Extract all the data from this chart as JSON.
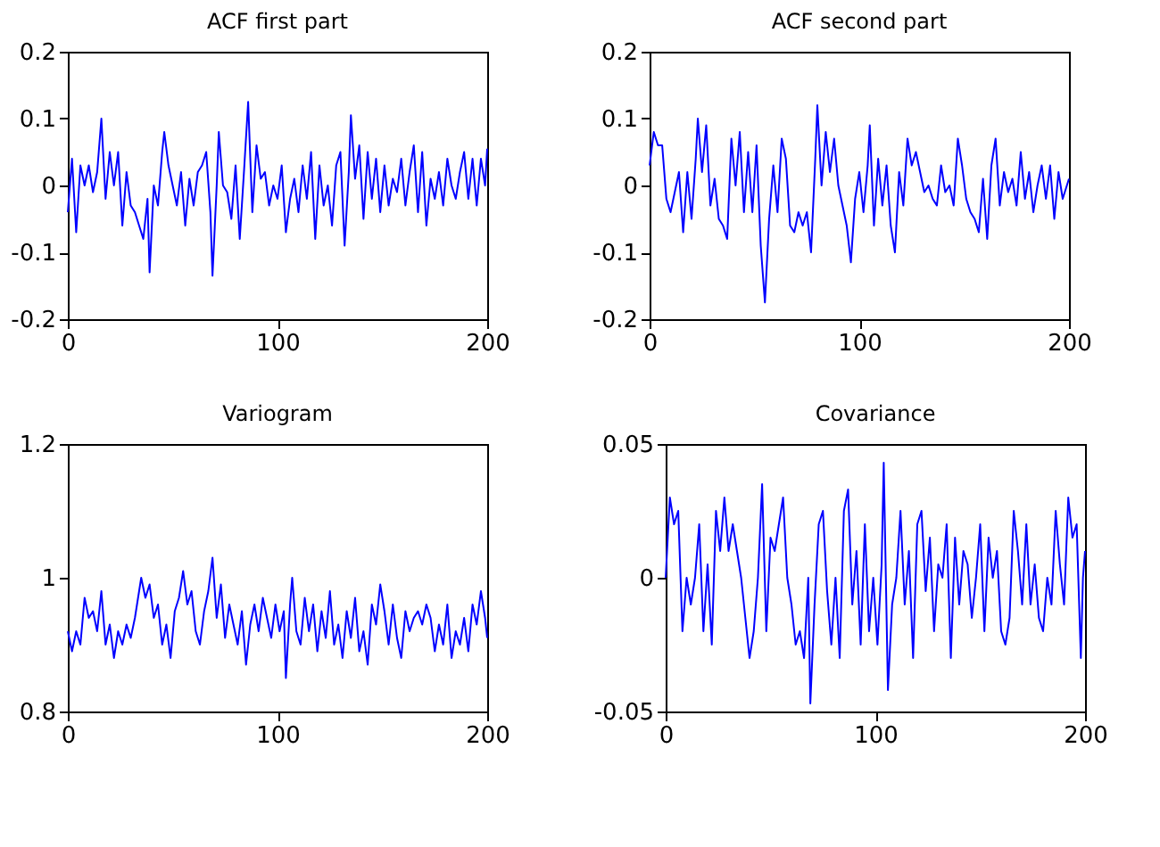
{
  "chart_data": [
    {
      "type": "line",
      "title": "ACF first part",
      "color": "#0000ff",
      "xlim": [
        0,
        200
      ],
      "xticks": [
        0,
        100,
        200
      ],
      "ylim": [
        -0.2,
        0.2
      ],
      "yticks": [
        -0.2,
        -0.1,
        0,
        0.1,
        0.2
      ],
      "x": [
        0,
        2,
        4,
        6,
        8,
        10,
        12,
        14,
        16,
        18,
        20,
        22,
        24,
        26,
        28,
        30,
        32,
        34,
        36,
        38,
        39,
        41,
        43,
        45,
        46,
        48,
        50,
        52,
        54,
        56,
        58,
        60,
        62,
        64,
        66,
        68,
        69,
        71,
        72,
        74,
        76,
        78,
        80,
        82,
        84,
        86,
        88,
        90,
        92,
        94,
        96,
        98,
        100,
        102,
        104,
        106,
        108,
        110,
        112,
        114,
        116,
        118,
        120,
        122,
        124,
        126,
        128,
        130,
        132,
        134,
        135,
        137,
        139,
        141,
        143,
        145,
        147,
        149,
        151,
        153,
        155,
        157,
        159,
        161,
        163,
        165,
        167,
        169,
        171,
        173,
        175,
        177,
        179,
        181,
        183,
        185,
        187,
        189,
        191,
        193,
        195,
        197,
        199,
        200
      ],
      "values": [
        -0.04,
        0.04,
        -0.07,
        0.03,
        0.0,
        0.03,
        -0.01,
        0.02,
        0.1,
        -0.02,
        0.05,
        0.0,
        0.05,
        -0.06,
        0.02,
        -0.03,
        -0.04,
        -0.06,
        -0.08,
        -0.02,
        -0.13,
        0.0,
        -0.03,
        0.05,
        0.08,
        0.03,
        0.0,
        -0.03,
        0.02,
        -0.06,
        0.01,
        -0.03,
        0.02,
        0.03,
        0.05,
        -0.04,
        -0.135,
        0.0,
        0.08,
        0.0,
        -0.01,
        -0.05,
        0.03,
        -0.08,
        0.02,
        0.125,
        -0.04,
        0.06,
        0.01,
        0.02,
        -0.03,
        0.0,
        -0.02,
        0.03,
        -0.07,
        -0.02,
        0.01,
        -0.04,
        0.03,
        -0.02,
        0.05,
        -0.08,
        0.03,
        -0.03,
        0.0,
        -0.06,
        0.03,
        0.05,
        -0.09,
        0.02,
        0.105,
        0.01,
        0.06,
        -0.05,
        0.05,
        -0.02,
        0.04,
        -0.04,
        0.03,
        -0.03,
        0.01,
        -0.01,
        0.04,
        -0.03,
        0.02,
        0.06,
        -0.04,
        0.05,
        -0.06,
        0.01,
        -0.02,
        0.02,
        -0.03,
        0.04,
        0.0,
        -0.02,
        0.02,
        0.05,
        -0.02,
        0.04,
        -0.03,
        0.04,
        0.0,
        0.055
      ]
    },
    {
      "type": "line",
      "title": "ACF second part",
      "color": "#0000ff",
      "xlim": [
        0,
        200
      ],
      "xticks": [
        0,
        100,
        200
      ],
      "ylim": [
        -0.2,
        0.2
      ],
      "yticks": [
        -0.2,
        -0.1,
        0,
        0.1,
        0.2
      ],
      "x": [
        0,
        2,
        4,
        6,
        8,
        10,
        12,
        14,
        16,
        18,
        20,
        22,
        23,
        25,
        27,
        29,
        31,
        33,
        35,
        37,
        39,
        41,
        43,
        45,
        47,
        49,
        51,
        53,
        55,
        57,
        59,
        61,
        63,
        65,
        67,
        69,
        71,
        73,
        75,
        77,
        79,
        80,
        82,
        84,
        86,
        88,
        90,
        92,
        94,
        96,
        98,
        100,
        102,
        104,
        105,
        107,
        109,
        111,
        113,
        115,
        117,
        119,
        121,
        123,
        125,
        127,
        129,
        131,
        133,
        135,
        137,
        139,
        141,
        143,
        145,
        147,
        149,
        151,
        153,
        155,
        157,
        159,
        161,
        163,
        165,
        167,
        169,
        171,
        173,
        175,
        177,
        179,
        181,
        183,
        185,
        187,
        189,
        191,
        193,
        195,
        197,
        199,
        200
      ],
      "values": [
        0.03,
        0.08,
        0.06,
        0.06,
        -0.02,
        -0.04,
        -0.01,
        0.02,
        -0.07,
        0.02,
        -0.05,
        0.04,
        0.1,
        0.02,
        0.09,
        -0.03,
        0.01,
        -0.05,
        -0.06,
        -0.08,
        0.07,
        0.0,
        0.08,
        -0.04,
        0.05,
        -0.04,
        0.06,
        -0.09,
        -0.175,
        -0.05,
        0.03,
        -0.04,
        0.07,
        0.04,
        -0.06,
        -0.07,
        -0.04,
        -0.06,
        -0.04,
        -0.1,
        0.04,
        0.12,
        0.0,
        0.08,
        0.02,
        0.07,
        0.0,
        -0.03,
        -0.06,
        -0.115,
        -0.02,
        0.02,
        -0.04,
        0.03,
        0.09,
        -0.06,
        0.04,
        -0.03,
        0.03,
        -0.06,
        -0.1,
        0.02,
        -0.03,
        0.07,
        0.03,
        0.05,
        0.02,
        -0.01,
        0.0,
        -0.02,
        -0.03,
        0.03,
        -0.01,
        0.0,
        -0.03,
        0.07,
        0.03,
        -0.02,
        -0.04,
        -0.05,
        -0.07,
        0.01,
        -0.08,
        0.03,
        0.07,
        -0.03,
        0.02,
        -0.01,
        0.01,
        -0.03,
        0.05,
        -0.02,
        0.02,
        -0.04,
        0.0,
        0.03,
        -0.02,
        0.03,
        -0.05,
        0.02,
        -0.02,
        0.0,
        0.01
      ]
    },
    {
      "type": "line",
      "title": "Variogram",
      "color": "#0000ff",
      "xlim": [
        0,
        200
      ],
      "xticks": [
        0,
        100,
        200
      ],
      "ylim": [
        0.8,
        1.2
      ],
      "yticks": [
        0.8,
        1,
        1.2
      ],
      "x": [
        0,
        2,
        4,
        6,
        8,
        10,
        12,
        14,
        16,
        18,
        20,
        22,
        24,
        26,
        28,
        30,
        32,
        34,
        35,
        37,
        39,
        41,
        43,
        45,
        47,
        49,
        51,
        53,
        55,
        57,
        59,
        61,
        63,
        65,
        67,
        69,
        71,
        73,
        75,
        77,
        79,
        81,
        83,
        85,
        87,
        89,
        91,
        93,
        95,
        97,
        99,
        101,
        103,
        104,
        106,
        107,
        109,
        111,
        113,
        115,
        117,
        119,
        121,
        123,
        125,
        127,
        129,
        131,
        133,
        135,
        137,
        139,
        141,
        143,
        145,
        147,
        149,
        151,
        153,
        155,
        157,
        159,
        161,
        163,
        165,
        167,
        169,
        171,
        173,
        175,
        177,
        179,
        181,
        183,
        185,
        187,
        189,
        191,
        193,
        195,
        197,
        199,
        200
      ],
      "values": [
        0.92,
        0.89,
        0.92,
        0.9,
        0.97,
        0.94,
        0.95,
        0.92,
        0.98,
        0.9,
        0.93,
        0.88,
        0.92,
        0.9,
        0.93,
        0.91,
        0.94,
        0.98,
        1.0,
        0.97,
        0.99,
        0.94,
        0.96,
        0.9,
        0.93,
        0.88,
        0.95,
        0.97,
        1.01,
        0.96,
        0.98,
        0.92,
        0.9,
        0.95,
        0.98,
        1.03,
        0.94,
        0.99,
        0.91,
        0.96,
        0.93,
        0.9,
        0.95,
        0.87,
        0.93,
        0.96,
        0.92,
        0.97,
        0.94,
        0.91,
        0.96,
        0.92,
        0.95,
        0.85,
        0.96,
        1.0,
        0.92,
        0.9,
        0.97,
        0.92,
        0.96,
        0.89,
        0.95,
        0.91,
        0.98,
        0.9,
        0.93,
        0.88,
        0.95,
        0.91,
        0.97,
        0.89,
        0.92,
        0.87,
        0.96,
        0.93,
        0.99,
        0.95,
        0.9,
        0.96,
        0.91,
        0.88,
        0.95,
        0.92,
        0.94,
        0.95,
        0.93,
        0.96,
        0.94,
        0.89,
        0.93,
        0.9,
        0.96,
        0.88,
        0.92,
        0.9,
        0.94,
        0.89,
        0.96,
        0.93,
        0.98,
        0.94,
        0.91
      ]
    },
    {
      "type": "line",
      "title": "Covariance",
      "color": "#0000ff",
      "xlim": [
        0,
        200
      ],
      "xticks": [
        0,
        100,
        200
      ],
      "ylim": [
        -0.05,
        0.05
      ],
      "yticks": [
        -0.05,
        0,
        0.05
      ],
      "x": [
        0,
        1,
        2,
        4,
        6,
        8,
        10,
        12,
        14,
        16,
        18,
        20,
        22,
        24,
        26,
        28,
        30,
        32,
        34,
        36,
        38,
        40,
        42,
        44,
        46,
        48,
        50,
        52,
        54,
        56,
        58,
        60,
        62,
        64,
        66,
        68,
        69,
        71,
        73,
        75,
        77,
        79,
        81,
        83,
        85,
        87,
        89,
        91,
        93,
        95,
        97,
        99,
        101,
        103,
        104,
        106,
        108,
        110,
        112,
        114,
        116,
        118,
        120,
        122,
        124,
        126,
        128,
        130,
        132,
        134,
        136,
        138,
        140,
        142,
        144,
        146,
        148,
        150,
        152,
        154,
        156,
        158,
        160,
        162,
        164,
        166,
        168,
        170,
        172,
        174,
        176,
        178,
        180,
        182,
        184,
        186,
        188,
        190,
        192,
        194,
        196,
        198,
        199,
        200
      ],
      "values": [
        0.0,
        0.015,
        0.03,
        0.02,
        0.025,
        -0.02,
        0.0,
        -0.01,
        0.0,
        0.02,
        -0.02,
        0.005,
        -0.025,
        0.025,
        0.01,
        0.03,
        0.01,
        0.02,
        0.01,
        0.0,
        -0.015,
        -0.03,
        -0.02,
        0.0,
        0.035,
        -0.02,
        0.015,
        0.01,
        0.02,
        0.03,
        0.0,
        -0.01,
        -0.025,
        -0.02,
        -0.03,
        0.0,
        -0.047,
        -0.01,
        0.02,
        0.025,
        -0.005,
        -0.025,
        0.0,
        -0.03,
        0.025,
        0.033,
        -0.01,
        0.01,
        -0.025,
        0.02,
        -0.02,
        0.0,
        -0.025,
        0.005,
        0.043,
        -0.042,
        -0.01,
        0.0,
        0.025,
        -0.01,
        0.01,
        -0.03,
        0.02,
        0.025,
        -0.005,
        0.015,
        -0.02,
        0.005,
        0.0,
        0.02,
        -0.03,
        0.015,
        -0.01,
        0.01,
        0.005,
        -0.015,
        0.0,
        0.02,
        -0.02,
        0.015,
        0.0,
        0.01,
        -0.02,
        -0.025,
        -0.015,
        0.025,
        0.01,
        -0.01,
        0.02,
        -0.01,
        0.005,
        -0.015,
        -0.02,
        0.0,
        -0.01,
        0.025,
        0.005,
        -0.01,
        0.03,
        0.015,
        0.02,
        -0.03,
        0.0,
        0.01
      ]
    }
  ]
}
